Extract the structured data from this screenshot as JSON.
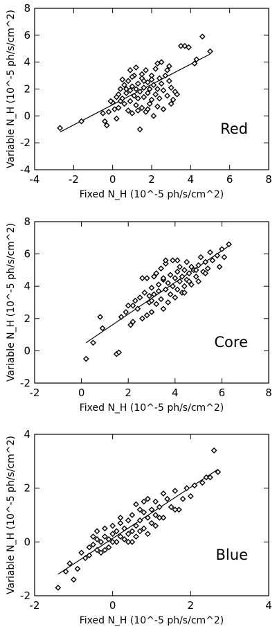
{
  "chart_data": [
    {
      "type": "scatter",
      "panel_label": "Red",
      "xlabel": "Fixed N_H (10^-5 ph/s/cm^2)",
      "ylabel": "Variable N_H (10^-5 ph/s/cm^2)",
      "xlim": [
        -4,
        8
      ],
      "ylim": [
        -4,
        8
      ],
      "xticks": [
        -4,
        -2,
        0,
        2,
        4,
        6,
        8
      ],
      "yticks": [
        -4,
        -2,
        0,
        2,
        4,
        6,
        8
      ],
      "fit_line": [
        [
          -2.7,
          -1.2
        ],
        [
          5.0,
          4.6
        ]
      ],
      "points": [
        [
          -2.7,
          -0.9
        ],
        [
          -1.6,
          -0.4
        ],
        [
          -0.5,
          0.2
        ],
        [
          -0.4,
          -0.4
        ],
        [
          -0.3,
          -0.7
        ],
        [
          -0.2,
          0.3
        ],
        [
          0.0,
          1.0
        ],
        [
          0.1,
          0.5
        ],
        [
          0.2,
          -0.2
        ],
        [
          0.3,
          0.6
        ],
        [
          0.3,
          1.6
        ],
        [
          0.4,
          2.0
        ],
        [
          0.5,
          1.3
        ],
        [
          0.6,
          0.9
        ],
        [
          0.6,
          2.3
        ],
        [
          0.7,
          1.7
        ],
        [
          0.8,
          0.4
        ],
        [
          0.8,
          2.6
        ],
        [
          0.9,
          1.1
        ],
        [
          0.9,
          1.9
        ],
        [
          1.0,
          0.2
        ],
        [
          1.0,
          2.2
        ],
        [
          1.1,
          1.5
        ],
        [
          1.1,
          3.0
        ],
        [
          1.2,
          0.8
        ],
        [
          1.2,
          2.0
        ],
        [
          1.3,
          1.3
        ],
        [
          1.3,
          2.4
        ],
        [
          1.4,
          -1.0
        ],
        [
          1.4,
          1.8
        ],
        [
          1.5,
          0.6
        ],
        [
          1.5,
          2.8
        ],
        [
          1.6,
          1.4
        ],
        [
          1.6,
          2.1
        ],
        [
          1.7,
          0.3
        ],
        [
          1.7,
          3.4
        ],
        [
          1.8,
          1.7
        ],
        [
          1.8,
          2.5
        ],
        [
          1.9,
          0.9
        ],
        [
          1.9,
          2.0
        ],
        [
          2.0,
          1.2
        ],
        [
          2.0,
          3.0
        ],
        [
          2.1,
          2.3
        ],
        [
          2.1,
          0.0
        ],
        [
          2.2,
          1.6
        ],
        [
          2.2,
          3.5
        ],
        [
          2.3,
          2.0
        ],
        [
          2.3,
          0.7
        ],
        [
          2.4,
          2.8
        ],
        [
          2.4,
          1.3
        ],
        [
          2.5,
          2.4
        ],
        [
          2.5,
          4.0
        ],
        [
          2.6,
          1.9
        ],
        [
          2.6,
          0.5
        ],
        [
          2.7,
          3.0
        ],
        [
          2.8,
          1.5
        ],
        [
          2.9,
          2.6
        ],
        [
          3.0,
          2.1
        ],
        [
          3.1,
          1.2
        ],
        [
          3.2,
          1.8
        ],
        [
          3.0,
          0.9
        ],
        [
          2.8,
          3.4
        ],
        [
          2.0,
          2.7
        ],
        [
          1.5,
          3.1
        ],
        [
          1.0,
          2.9
        ],
        [
          0.7,
          2.0
        ],
        [
          0.4,
          1.1
        ],
        [
          0.2,
          1.4
        ],
        [
          -0.1,
          1.1
        ],
        [
          0.5,
          2.7
        ],
        [
          1.8,
          0.5
        ],
        [
          2.9,
          3.7
        ],
        [
          3.5,
          5.2
        ],
        [
          3.7,
          5.2
        ],
        [
          3.9,
          5.1
        ],
        [
          4.3,
          4.2
        ],
        [
          4.2,
          3.9
        ],
        [
          4.6,
          5.9
        ],
        [
          5.0,
          4.8
        ],
        [
          3.3,
          1.6
        ],
        [
          1.2,
          3.6
        ],
        [
          2.3,
          3.9
        ],
        [
          1.6,
          2.6
        ],
        [
          0.9,
          3.4
        ],
        [
          1.3,
          0.4
        ]
      ]
    },
    {
      "type": "scatter",
      "panel_label": "Core",
      "xlabel": "Fixed N_H (10^-5 ph/s/cm^2)",
      "ylabel": "Variable N_H (10^-5 ph/s/cm^2)",
      "xlim": [
        -2,
        8
      ],
      "ylim": [
        -2,
        8
      ],
      "xticks": [
        -2,
        0,
        2,
        4,
        6,
        8
      ],
      "yticks": [
        -2,
        0,
        2,
        4,
        6,
        8
      ],
      "fit_line": [
        [
          0.2,
          0.5
        ],
        [
          6.3,
          6.5
        ]
      ],
      "points": [
        [
          0.2,
          -0.5
        ],
        [
          0.5,
          0.5
        ],
        [
          0.8,
          2.1
        ],
        [
          0.9,
          1.4
        ],
        [
          1.5,
          -0.2
        ],
        [
          1.6,
          -0.1
        ],
        [
          1.7,
          2.1
        ],
        [
          1.9,
          2.4
        ],
        [
          2.0,
          2.8
        ],
        [
          2.1,
          1.6
        ],
        [
          2.2,
          1.8
        ],
        [
          2.3,
          3.1
        ],
        [
          2.4,
          2.6
        ],
        [
          2.5,
          3.3
        ],
        [
          2.6,
          2.0
        ],
        [
          2.7,
          3.6
        ],
        [
          2.8,
          4.5
        ],
        [
          2.9,
          3.0
        ],
        [
          3.0,
          3.9
        ],
        [
          3.0,
          2.4
        ],
        [
          3.1,
          3.5
        ],
        [
          3.2,
          4.8
        ],
        [
          3.2,
          2.9
        ],
        [
          3.3,
          4.1
        ],
        [
          3.4,
          3.2
        ],
        [
          3.4,
          5.1
        ],
        [
          3.5,
          4.4
        ],
        [
          3.5,
          2.6
        ],
        [
          3.6,
          3.8
        ],
        [
          3.6,
          5.4
        ],
        [
          3.7,
          4.2
        ],
        [
          3.7,
          3.0
        ],
        [
          3.8,
          4.7
        ],
        [
          3.8,
          3.5
        ],
        [
          3.9,
          4.0
        ],
        [
          3.9,
          5.6
        ],
        [
          4.0,
          4.5
        ],
        [
          4.0,
          3.3
        ],
        [
          4.1,
          4.9
        ],
        [
          4.1,
          3.8
        ],
        [
          4.2,
          4.3
        ],
        [
          4.2,
          5.2
        ],
        [
          4.3,
          3.6
        ],
        [
          4.3,
          4.6
        ],
        [
          4.4,
          5.0
        ],
        [
          4.4,
          4.0
        ],
        [
          4.5,
          4.4
        ],
        [
          4.5,
          5.5
        ],
        [
          4.6,
          4.8
        ],
        [
          4.7,
          5.2
        ],
        [
          4.7,
          4.1
        ],
        [
          4.8,
          5.0
        ],
        [
          4.9,
          4.6
        ],
        [
          5.0,
          5.3
        ],
        [
          5.0,
          4.3
        ],
        [
          5.1,
          5.8
        ],
        [
          5.2,
          4.9
        ],
        [
          5.3,
          5.5
        ],
        [
          5.4,
          5.1
        ],
        [
          5.5,
          6.1
        ],
        [
          5.6,
          5.6
        ],
        [
          5.8,
          5.9
        ],
        [
          5.9,
          5.2
        ],
        [
          6.0,
          6.3
        ],
        [
          6.1,
          5.8
        ],
        [
          6.3,
          6.6
        ],
        [
          2.6,
          4.5
        ],
        [
          3.1,
          4.6
        ],
        [
          3.6,
          5.6
        ],
        [
          4.1,
          5.6
        ],
        [
          2.2,
          2.8
        ],
        [
          2.9,
          3.4
        ],
        [
          3.3,
          3.7
        ],
        [
          3.5,
          4.5
        ],
        [
          4.6,
          4.3
        ],
        [
          4.9,
          5.0
        ],
        [
          5.3,
          4.8
        ],
        [
          3.0,
          3.1
        ],
        [
          2.8,
          2.2
        ],
        [
          4.4,
          3.6
        ]
      ]
    },
    {
      "type": "scatter",
      "panel_label": "Blue",
      "xlabel": "Fixed N_H (10^-5 ph/s/cm^2)",
      "ylabel": "Variable N_H (10^-5 ph/s/cm^2)",
      "xlim": [
        -2,
        4
      ],
      "ylim": [
        -2,
        4
      ],
      "xticks": [
        -2,
        0,
        2,
        4
      ],
      "yticks": [
        -2,
        0,
        2,
        4
      ],
      "fit_line": [
        [
          -1.4,
          -1.2
        ],
        [
          2.7,
          2.7
        ]
      ],
      "points": [
        [
          -1.4,
          -1.7
        ],
        [
          -1.2,
          -1.1
        ],
        [
          -1.1,
          -0.8
        ],
        [
          -1.0,
          -1.4
        ],
        [
          -0.9,
          -1.0
        ],
        [
          -0.8,
          -0.4
        ],
        [
          -0.7,
          -0.6
        ],
        [
          -0.6,
          -0.2
        ],
        [
          -0.6,
          -0.5
        ],
        [
          -0.5,
          -0.1
        ],
        [
          -0.5,
          0.2
        ],
        [
          -0.4,
          -0.3
        ],
        [
          -0.4,
          0.4
        ],
        [
          -0.3,
          0.0
        ],
        [
          -0.3,
          -0.4
        ],
        [
          -0.2,
          0.2
        ],
        [
          -0.2,
          0.5
        ],
        [
          -0.1,
          0.1
        ],
        [
          -0.1,
          -0.2
        ],
        [
          0.0,
          0.3
        ],
        [
          0.0,
          0.6
        ],
        [
          0.1,
          0.0
        ],
        [
          0.1,
          0.4
        ],
        [
          0.2,
          0.2
        ],
        [
          0.2,
          0.7
        ],
        [
          0.3,
          0.1
        ],
        [
          0.3,
          0.5
        ],
        [
          0.4,
          0.3
        ],
        [
          0.4,
          0.8
        ],
        [
          0.5,
          0.4
        ],
        [
          0.5,
          0.0
        ],
        [
          0.5,
          1.0
        ],
        [
          0.6,
          0.6
        ],
        [
          0.6,
          0.2
        ],
        [
          0.7,
          0.8
        ],
        [
          0.7,
          0.4
        ],
        [
          0.8,
          1.1
        ],
        [
          0.8,
          0.5
        ],
        [
          0.9,
          0.9
        ],
        [
          0.9,
          0.3
        ],
        [
          1.0,
          1.2
        ],
        [
          1.0,
          0.7
        ],
        [
          1.1,
          1.0
        ],
        [
          1.1,
          1.5
        ],
        [
          1.2,
          1.3
        ],
        [
          1.3,
          0.9
        ],
        [
          1.4,
          1.6
        ],
        [
          1.5,
          1.3
        ],
        [
          1.6,
          1.9
        ],
        [
          1.7,
          1.2
        ],
        [
          1.8,
          1.6
        ],
        [
          1.9,
          2.0
        ],
        [
          2.0,
          1.7
        ],
        [
          2.1,
          2.1
        ],
        [
          2.3,
          2.2
        ],
        [
          2.4,
          2.4
        ],
        [
          2.5,
          2.4
        ],
        [
          2.6,
          3.4
        ],
        [
          2.7,
          2.6
        ],
        [
          0.6,
          1.4
        ],
        [
          0.8,
          1.5
        ],
        [
          1.3,
          1.8
        ],
        [
          0.9,
          1.6
        ],
        [
          0.0,
          0.0
        ],
        [
          -0.4,
          0.1
        ],
        [
          0.2,
          0.9
        ],
        [
          0.4,
          0.0
        ],
        [
          1.1,
          0.6
        ],
        [
          1.6,
          1.2
        ],
        [
          -0.2,
          -0.3
        ],
        [
          0.7,
          1.2
        ],
        [
          1.2,
          0.9
        ]
      ]
    }
  ]
}
